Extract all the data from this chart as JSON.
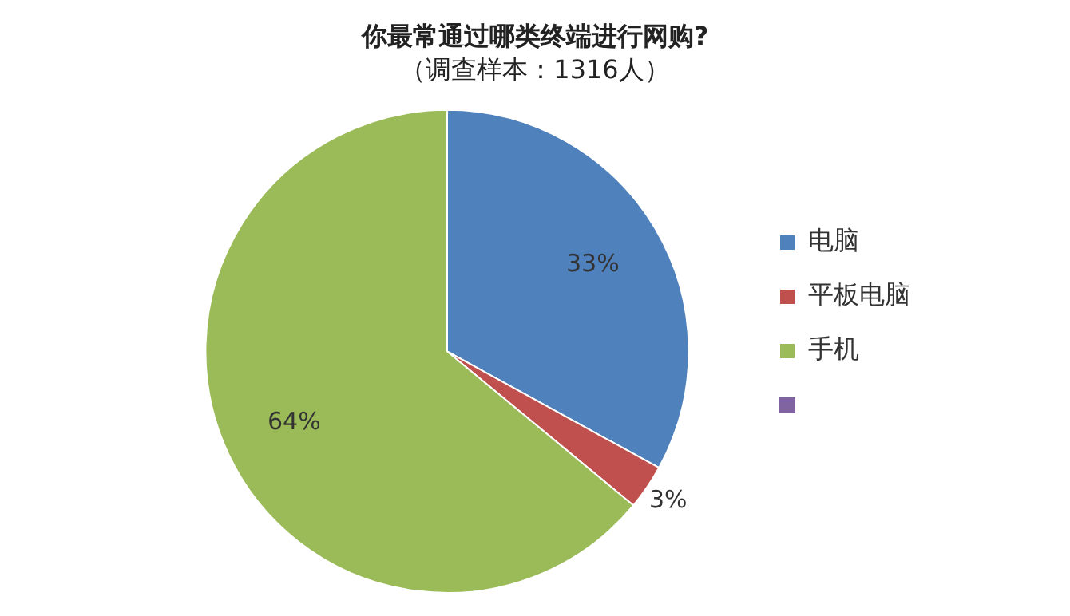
{
  "chart_data": {
    "type": "pie",
    "title": "你最常通过哪类终端进行网购?",
    "subtitle": "（调查样本：1316人）",
    "categories": [
      "电脑",
      "平板电脑",
      "手机"
    ],
    "values": [
      33,
      3,
      64
    ],
    "colors": [
      "#4f81bd",
      "#c0504d",
      "#9bbb59"
    ],
    "value_labels": [
      "33%",
      "3%",
      "64%"
    ],
    "legend": "right"
  }
}
